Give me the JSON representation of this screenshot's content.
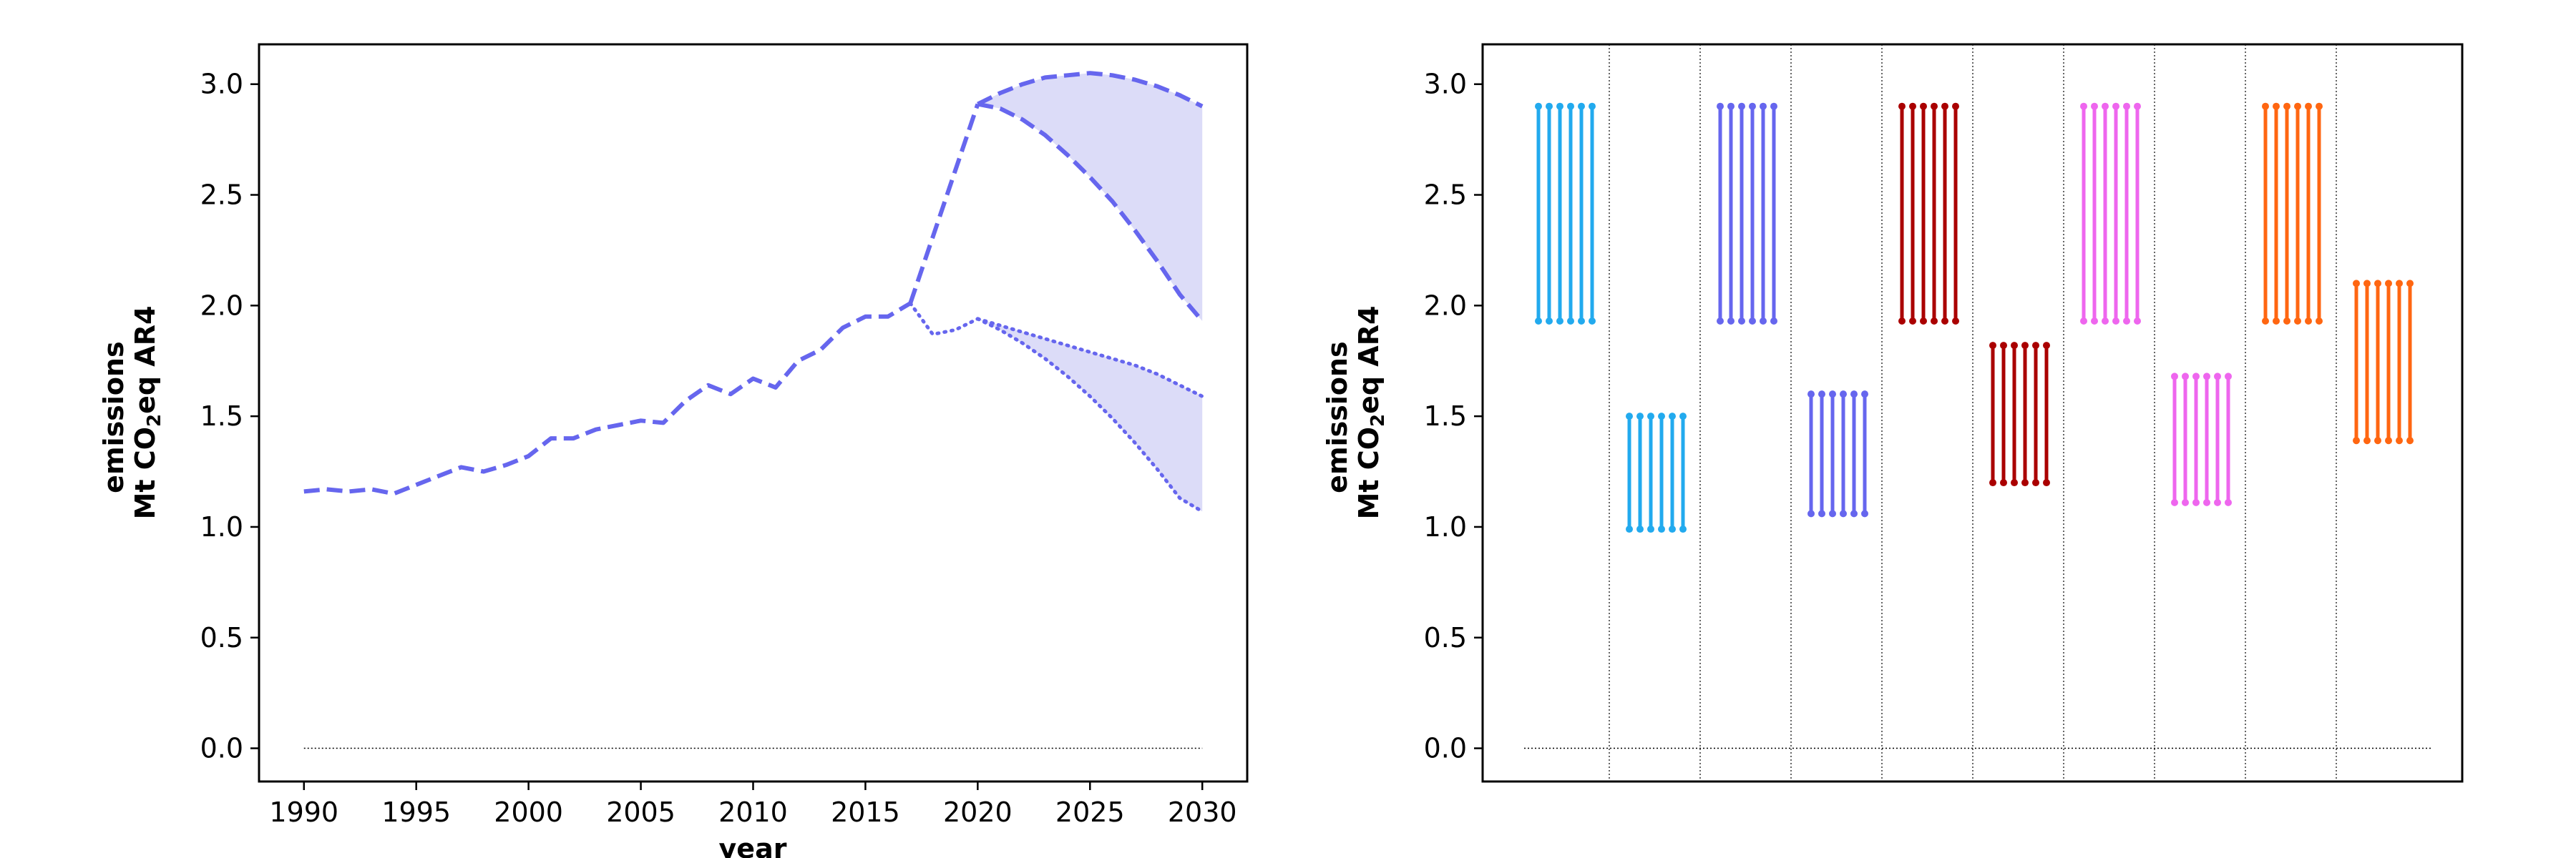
{
  "chart_data": [
    {
      "type": "line",
      "xlabel": "year",
      "ylabel_line1": "emissions",
      "ylabel_line2_pre": "Mt CO",
      "ylabel_line2_sub": "2",
      "ylabel_line2_post": "eq AR4",
      "xlim": [
        1988,
        2032
      ],
      "ylim": [
        -0.15,
        3.18
      ],
      "xticks": [
        "1990",
        "1995",
        "2000",
        "2005",
        "2010",
        "2015",
        "2020",
        "2025",
        "2030"
      ],
      "yticks": [
        "0.0",
        "0.5",
        "1.0",
        "1.5",
        "2.0",
        "2.5",
        "3.0"
      ],
      "color": "#6666ee",
      "fill_color": "#dcdcf8",
      "reference_line": {
        "y": 0.0,
        "x": [
          1990,
          2030
        ],
        "style": "dotted"
      },
      "historical": {
        "x": [
          1990,
          1991,
          1992,
          1993,
          1994,
          1995,
          1996,
          1997,
          1998,
          1999,
          2000,
          2001,
          2002,
          2003,
          2004,
          2005,
          2006,
          2007,
          2008,
          2009,
          2010,
          2011,
          2012,
          2013,
          2014,
          2015,
          2016,
          2017
        ],
        "y": [
          1.16,
          1.17,
          1.16,
          1.17,
          1.15,
          1.19,
          1.23,
          1.27,
          1.25,
          1.28,
          1.32,
          1.4,
          1.4,
          1.44,
          1.46,
          1.48,
          1.47,
          1.57,
          1.64,
          1.6,
          1.67,
          1.63,
          1.75,
          1.8,
          1.9,
          1.95,
          1.95,
          2.01
        ]
      },
      "dashed_path": {
        "x": [
          2017,
          2018,
          2019,
          2020
        ],
        "y": [
          2.01,
          2.31,
          2.61,
          2.91
        ]
      },
      "dashed_upper": {
        "x": [
          2020,
          2021,
          2022,
          2023,
          2024,
          2025,
          2026,
          2027,
          2028,
          2029,
          2030
        ],
        "y": [
          2.91,
          2.96,
          3.0,
          3.03,
          3.04,
          3.05,
          3.04,
          3.02,
          2.99,
          2.95,
          2.9
        ]
      },
      "dashed_lower": {
        "x": [
          2020,
          2021,
          2022,
          2023,
          2024,
          2025,
          2026,
          2027,
          2028,
          2029,
          2030
        ],
        "y": [
          2.91,
          2.89,
          2.84,
          2.77,
          2.68,
          2.58,
          2.47,
          2.34,
          2.2,
          2.05,
          1.93
        ]
      },
      "dotted_path": {
        "x": [
          2017,
          2018,
          2019,
          2020
        ],
        "y": [
          2.01,
          1.87,
          1.89,
          1.94
        ]
      },
      "dotted_upper": {
        "x": [
          2020,
          2021,
          2022,
          2023,
          2024,
          2025,
          2026,
          2027,
          2028,
          2029,
          2030
        ],
        "y": [
          1.94,
          1.91,
          1.88,
          1.85,
          1.82,
          1.79,
          1.76,
          1.73,
          1.69,
          1.64,
          1.59
        ]
      },
      "dotted_lower": {
        "x": [
          2020,
          2021,
          2022,
          2023,
          2024,
          2025,
          2026,
          2027,
          2028,
          2029,
          2030
        ],
        "y": [
          1.94,
          1.89,
          1.83,
          1.76,
          1.68,
          1.59,
          1.49,
          1.38,
          1.26,
          1.13,
          1.07
        ]
      }
    },
    {
      "type": "range",
      "ylabel_line1": "emissions",
      "ylabel_line2_pre": "Mt CO",
      "ylabel_line2_sub": "2",
      "ylabel_line2_post": "eq AR4",
      "ylim": [
        -0.15,
        3.18
      ],
      "yticks": [
        "0.0",
        "0.5",
        "1.0",
        "1.5",
        "2.0",
        "2.5",
        "3.0"
      ],
      "group_count": 10,
      "lines_per_group": 6,
      "reference_line": {
        "y": 0.0,
        "style": "dotted"
      },
      "groups": [
        {
          "color": "#22aaee",
          "low": 1.93,
          "high": 2.9
        },
        {
          "color": "#22aaee",
          "low": 0.99,
          "high": 1.5
        },
        {
          "color": "#6666ee",
          "low": 1.93,
          "high": 2.9
        },
        {
          "color": "#6666ee",
          "low": 1.06,
          "high": 1.6
        },
        {
          "color": "#aa0000",
          "low": 1.93,
          "high": 2.9
        },
        {
          "color": "#aa0000",
          "low": 1.2,
          "high": 1.82
        },
        {
          "color": "#ee66ee",
          "low": 1.93,
          "high": 2.9
        },
        {
          "color": "#ee66ee",
          "low": 1.11,
          "high": 1.68
        },
        {
          "color": "#ff6611",
          "low": 1.93,
          "high": 2.9
        },
        {
          "color": "#ff6611",
          "low": 1.39,
          "high": 2.1
        }
      ]
    }
  ]
}
